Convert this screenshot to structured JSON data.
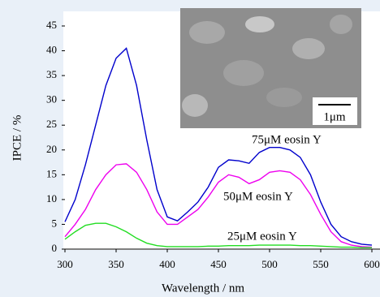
{
  "chart_data": {
    "type": "line",
    "x_label": "Wavelength / nm",
    "y_label": "IPCE / %",
    "x": [
      300,
      310,
      320,
      330,
      340,
      350,
      360,
      370,
      380,
      390,
      400,
      410,
      420,
      430,
      440,
      450,
      460,
      470,
      480,
      490,
      500,
      510,
      520,
      530,
      540,
      550,
      560,
      570,
      580,
      590,
      600
    ],
    "series": [
      {
        "name": "75μM eosin Y",
        "color": "#0000cc",
        "values": [
          5.5,
          10,
          17,
          25,
          33,
          38.5,
          40.5,
          33,
          22,
          12,
          6.5,
          5.7,
          7.5,
          9.5,
          12.5,
          16.5,
          18,
          17.8,
          17.3,
          19.5,
          20.5,
          20.5,
          20,
          18.5,
          15,
          9.5,
          5,
          2.5,
          1.5,
          1,
          0.8
        ]
      },
      {
        "name": "50μM eosin Y",
        "color": "#ee00ee",
        "values": [
          2.5,
          5,
          8,
          12,
          15,
          17,
          17.2,
          15.5,
          12,
          7.5,
          5,
          5,
          6.5,
          8,
          10.5,
          13.5,
          15,
          14.5,
          13.2,
          14,
          15.5,
          15.8,
          15.5,
          14,
          11,
          7,
          3.5,
          1.5,
          0.8,
          0.5,
          0.4
        ]
      },
      {
        "name": "25μM eosin Y",
        "color": "#22dd22",
        "values": [
          2,
          3.5,
          4.8,
          5.2,
          5.2,
          4.5,
          3.5,
          2.2,
          1.2,
          0.7,
          0.5,
          0.5,
          0.5,
          0.5,
          0.6,
          0.6,
          0.7,
          0.7,
          0.7,
          0.8,
          0.8,
          0.8,
          0.8,
          0.7,
          0.7,
          0.6,
          0.5,
          0.4,
          0.4,
          0.3,
          0.3
        ]
      }
    ],
    "xlim": [
      300,
      600
    ],
    "xticks": [
      300,
      350,
      400,
      450,
      500,
      550,
      600
    ],
    "ylim": [
      0,
      45
    ],
    "yticks": [
      0,
      5,
      10,
      15,
      20,
      25,
      30,
      35,
      40,
      45
    ],
    "inset_scale_label": "1μm"
  }
}
